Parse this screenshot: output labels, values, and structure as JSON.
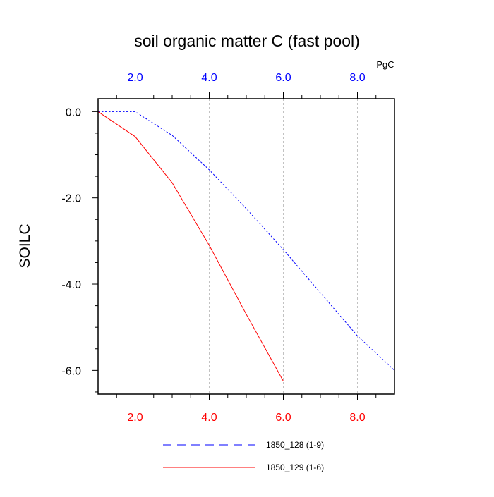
{
  "chart_data": {
    "type": "line",
    "title": "soil organic matter C (fast pool)",
    "ylabel": "SOILC",
    "xlabel": "",
    "top_axis_unit": "PgC",
    "xlim": [
      1,
      9
    ],
    "ylim": [
      -6.55,
      0.3
    ],
    "x_ticks_major": [
      2,
      4,
      6,
      8
    ],
    "x_tick_labels_bottom": [
      "2.0",
      "4.0",
      "6.0",
      "8.0"
    ],
    "x_tick_labels_top": [
      "2.0",
      "4.0",
      "6.0",
      "8.0"
    ],
    "y_ticks_major": [
      0,
      -2,
      -4,
      -6
    ],
    "y_tick_labels": [
      "0.0",
      "-2.0",
      "-4.0",
      "-6.0"
    ],
    "grid": "vertical-dashed",
    "legend_position": "bottom",
    "colors": {
      "top_axis_labels": "#0000ff",
      "bottom_axis_labels": "#ff0000"
    },
    "series": [
      {
        "name": "1850_128 (1-9)",
        "color": "#0000ff",
        "dash": "dotted",
        "x": [
          1,
          2,
          3,
          4,
          5,
          6,
          7,
          8,
          9
        ],
        "y": [
          0.0,
          0.0,
          -0.55,
          -1.35,
          -2.25,
          -3.2,
          -4.2,
          -5.2,
          -6.0
        ]
      },
      {
        "name": "1850_129 (1-6)",
        "color": "#ff0000",
        "dash": "solid",
        "x": [
          1,
          2,
          3,
          4,
          5,
          6
        ],
        "y": [
          0.0,
          -0.58,
          -1.65,
          -3.1,
          -4.7,
          -6.25
        ]
      }
    ]
  }
}
